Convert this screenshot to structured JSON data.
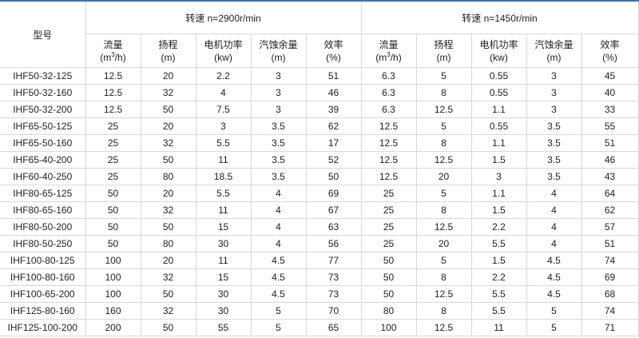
{
  "header": {
    "model": "型号",
    "speed_2900": "转速 n=2900r/min",
    "speed_1450": "转速 n=1450r/min",
    "columns": [
      {
        "name": "流量",
        "unit_pre": "(m",
        "unit_sup": "3",
        "unit_post": "/h)"
      },
      {
        "name": "扬程",
        "unit_pre": "(m)",
        "unit_sup": "",
        "unit_post": ""
      },
      {
        "name": "电机功率",
        "unit_pre": "(kw)",
        "unit_sup": "",
        "unit_post": ""
      },
      {
        "name": "汽蚀余量",
        "unit_pre": "(m)",
        "unit_sup": "",
        "unit_post": ""
      },
      {
        "name": "效率",
        "unit_pre": "(%)",
        "unit_sup": "",
        "unit_post": ""
      }
    ]
  },
  "colors": {
    "top_border": "#3a72b0",
    "grid": "#d9d9d9"
  },
  "rows": [
    [
      "IHF50-32-125",
      "12.5",
      "20",
      "2.2",
      "3",
      "51",
      "6.3",
      "5",
      "0.55",
      "3",
      "45"
    ],
    [
      "IHF50-32-160",
      "12.5",
      "32",
      "4",
      "3",
      "46",
      "6.3",
      "8",
      "0.55",
      "3",
      "40"
    ],
    [
      "IHF50-32-200",
      "12.5",
      "50",
      "7.5",
      "3",
      "39",
      "6.3",
      "12.5",
      "1.1",
      "3",
      "33"
    ],
    [
      "IHF65-50-125",
      "25",
      "20",
      "3",
      "3.5",
      "62",
      "12.5",
      "5",
      "0.55",
      "3.5",
      "55"
    ],
    [
      "IHF65-50-160",
      "25",
      "32",
      "5.5",
      "3.5",
      "17",
      "12.5",
      "8",
      "1.1",
      "3.5",
      "51"
    ],
    [
      "IHF65-40-200",
      "25",
      "50",
      "11",
      "3.5",
      "52",
      "12.5",
      "12.5",
      "1.5",
      "3.5",
      "46"
    ],
    [
      "IHF60-40-250",
      "25",
      "80",
      "18.5",
      "3.5",
      "50",
      "12.5",
      "20",
      "3",
      "3.5",
      "43"
    ],
    [
      "IHF80-65-125",
      "50",
      "20",
      "5.5",
      "4",
      "69",
      "25",
      "5",
      "1.1",
      "4",
      "64"
    ],
    [
      "IHF80-65-160",
      "50",
      "32",
      "11",
      "4",
      "67",
      "25",
      "8",
      "1.5",
      "4",
      "62"
    ],
    [
      "IHF80-50-200",
      "50",
      "50",
      "15",
      "4",
      "63",
      "25",
      "12.5",
      "2.2",
      "4",
      "57"
    ],
    [
      "IHF80-50-250",
      "50",
      "80",
      "30",
      "4",
      "56",
      "25",
      "20",
      "5.5",
      "4",
      "51"
    ],
    [
      "IHF100-80-125",
      "100",
      "20",
      "11",
      "4.5",
      "77",
      "50",
      "5",
      "1.5",
      "4.5",
      "74"
    ],
    [
      "IHF100-80-160",
      "100",
      "32",
      "15",
      "4.5",
      "73",
      "50",
      "8",
      "2.2",
      "4.5",
      "69"
    ],
    [
      "IHF100-65-200",
      "100",
      "50",
      "30",
      "4.5",
      "73",
      "50",
      "12.5",
      "5.5",
      "4.5",
      "68"
    ],
    [
      "IHF125-80-160",
      "160",
      "32",
      "30",
      "5",
      "70",
      "80",
      "8",
      "5.5",
      "5",
      "74"
    ],
    [
      "IHF125-100-200",
      "200",
      "50",
      "55",
      "5",
      "65",
      "100",
      "12.5",
      "11",
      "5",
      "71"
    ]
  ]
}
